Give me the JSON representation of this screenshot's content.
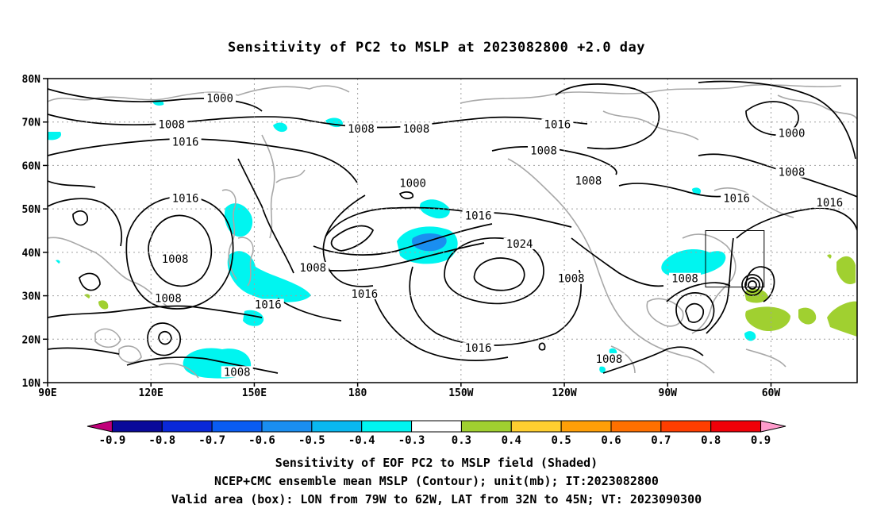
{
  "title": "Sensitivity of PC2 to MSLP at 2023082800 +2.0 day",
  "map": {
    "lat_labels": [
      "80N",
      "70N",
      "60N",
      "50N",
      "40N",
      "30N",
      "20N",
      "10N"
    ],
    "lon_labels": [
      "90E",
      "120E",
      "150E",
      "180",
      "150W",
      "120W",
      "90W",
      "60W"
    ],
    "lat_values": [
      80,
      70,
      60,
      50,
      40,
      30,
      20,
      10
    ],
    "lon_values": [
      90,
      120,
      150,
      180,
      210,
      240,
      270,
      300
    ],
    "lon_range": [
      90,
      325
    ],
    "lat_range": [
      10,
      80
    ],
    "valid_box": {
      "lon": [
        281,
        298
      ],
      "lat": [
        32,
        45
      ]
    },
    "contour_labels": [
      {
        "text": "1000",
        "lon": 140,
        "lat": 75.5
      },
      {
        "text": "1008",
        "lon": 126,
        "lat": 69.5
      },
      {
        "text": "1016",
        "lon": 130,
        "lat": 65.5
      },
      {
        "text": "1008",
        "lon": 181,
        "lat": 68.5
      },
      {
        "text": "1008",
        "lon": 197,
        "lat": 68.5
      },
      {
        "text": "1016",
        "lon": 238,
        "lat": 69.5
      },
      {
        "text": "1008",
        "lon": 234,
        "lat": 63.5
      },
      {
        "text": "1000",
        "lon": 306,
        "lat": 67.5
      },
      {
        "text": "1008",
        "lon": 306,
        "lat": 58.5
      },
      {
        "text": "1008",
        "lon": 247,
        "lat": 56.5
      },
      {
        "text": "1000",
        "lon": 196,
        "lat": 56
      },
      {
        "text": "1016",
        "lon": 130,
        "lat": 52.5
      },
      {
        "text": "1016",
        "lon": 290,
        "lat": 52.5
      },
      {
        "text": "1016",
        "lon": 317,
        "lat": 51.5
      },
      {
        "text": "1016",
        "lon": 215,
        "lat": 48.5
      },
      {
        "text": "1024",
        "lon": 227,
        "lat": 42
      },
      {
        "text": "1008",
        "lon": 127,
        "lat": 38.5
      },
      {
        "text": "1008",
        "lon": 167,
        "lat": 36.5
      },
      {
        "text": "1008",
        "lon": 242,
        "lat": 34
      },
      {
        "text": "1008",
        "lon": 275,
        "lat": 34
      },
      {
        "text": "1008",
        "lon": 125,
        "lat": 29.5
      },
      {
        "text": "1016",
        "lon": 182,
        "lat": 30.5
      },
      {
        "text": "1016",
        "lon": 154,
        "lat": 28
      },
      {
        "text": "1016",
        "lon": 215,
        "lat": 18
      },
      {
        "text": "1008",
        "lon": 145,
        "lat": 12.5
      },
      {
        "text": "1008",
        "lon": 253,
        "lat": 15.5
      }
    ],
    "contour_color": "#000000",
    "coast_color": "#a8a8a8",
    "grid_color": "#a0a0a0"
  },
  "colorbar": {
    "colors": [
      "#c0007a",
      "#0a0a9a",
      "#0a28d8",
      "#0a5cf2",
      "#1a8ef0",
      "#0ab8f0",
      "#00f5f0",
      "#ffffff",
      "#a0d030",
      "#ffcf30",
      "#ff9f08",
      "#ff7000",
      "#ff3e00",
      "#f00008",
      "#ff9ccc"
    ],
    "tick_labels": [
      "-0.9",
      "-0.8",
      "-0.7",
      "-0.6",
      "-0.5",
      "-0.4",
      "-0.3",
      "0.3",
      "0.4",
      "0.5",
      "0.6",
      "0.7",
      "0.8",
      "0.9"
    ]
  },
  "shading": {
    "cyan": "#00f5f0",
    "blue": "#1a8ef0",
    "green": "#a0d030"
  },
  "footer": {
    "line1": "Sensitivity of EOF PC2 to MSLP field (Shaded)",
    "line2": "NCEP+CMC ensemble mean MSLP (Contour); unit(mb); IT:2023082800",
    "line3": "Valid area (box): LON from 79W to 62W, LAT from 32N to 45N; VT: 2023090300"
  }
}
